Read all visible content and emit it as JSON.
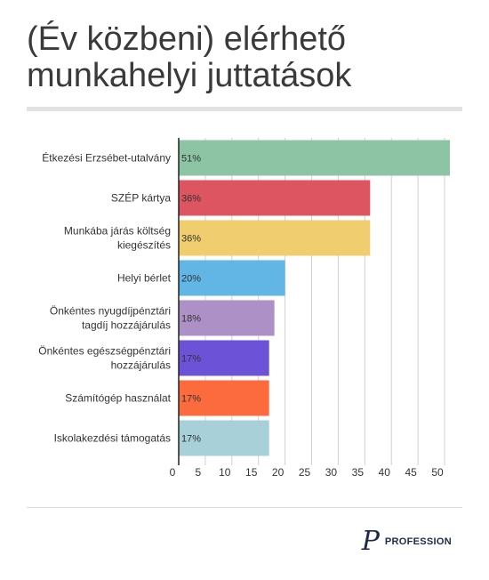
{
  "chart_data": {
    "type": "bar",
    "orientation": "horizontal",
    "title": "(Év közbeni) elérhető munkahelyi juttatások",
    "categories": [
      [
        "Étkezési Erzsébet-utalvány"
      ],
      [
        "SZÉP kártya"
      ],
      [
        "Munkába járás költség",
        "kiegészítés"
      ],
      [
        "Helyi bérlet"
      ],
      [
        "Önkéntes nyugdíjpénztári",
        "tagdíj hozzájárulás"
      ],
      [
        "Önkéntes egészségpénztári",
        "hozzájárulás"
      ],
      [
        "Számítógép használat"
      ],
      [
        "Iskolakezdési támogatás"
      ]
    ],
    "values": [
      51,
      36,
      36,
      20,
      18,
      17,
      17,
      17
    ],
    "value_labels": [
      "51%",
      "36%",
      "36%",
      "20%",
      "18%",
      "17%",
      "17%",
      "17%"
    ],
    "colors": [
      "#8cc4a4",
      "#dc5560",
      "#f0cd6e",
      "#62b6e6",
      "#ad91c6",
      "#6b52d6",
      "#fc6b3e",
      "#a7d0d8"
    ],
    "xticks": [
      0,
      5,
      10,
      15,
      20,
      25,
      30,
      35,
      40,
      45,
      50
    ],
    "xlim": [
      0,
      52
    ],
    "grid": true,
    "xlabel": "",
    "ylabel": ""
  },
  "brand": {
    "mark": "P",
    "name": "PROFESSION"
  }
}
